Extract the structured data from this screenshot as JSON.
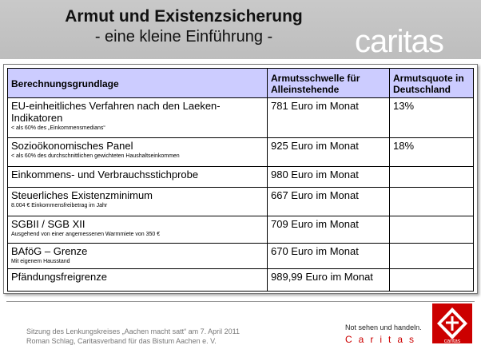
{
  "header": {
    "title": "Armut und Existenzsicherung",
    "subtitle": "- eine kleine Einführung -",
    "watermark": "caritas"
  },
  "table": {
    "headers": [
      "Berechnungsgrundlage",
      "Armutsschwelle für Alleinstehende",
      "Armutsquote in Deutschland"
    ],
    "rows": [
      {
        "basis": "EU-einheitliches Verfahren nach den Laeken-Indikatoren",
        "note": "< als 60% des „Einkommensmedians“",
        "threshold": "781 Euro im Monat",
        "rate": "13%"
      },
      {
        "basis": "Sozioökonomisches Panel",
        "note": "< als 60% des durchschnittlichen gewichteten Haushaltseinkommen",
        "threshold": "925 Euro im Monat",
        "rate": "18%"
      },
      {
        "basis": "Einkommens- und Verbrauchsstichprobe",
        "note": "",
        "threshold": "980 Euro im Monat",
        "rate": ""
      },
      {
        "basis": "Steuerliches Existenzminimum",
        "note": "8.004 € Einkommensfreibetrag im Jahr",
        "threshold": "667 Euro im Monat",
        "rate": ""
      },
      {
        "basis": "SGBII / SGB XII",
        "note": "Ausgehend von einer angemessenen Warmmiete von 350 €",
        "threshold": "709 Euro im Monat",
        "rate": ""
      },
      {
        "basis": "BAföG – Grenze",
        "note": "Mit eigenem Hausstand",
        "threshold": "670 Euro im Monat",
        "rate": ""
      },
      {
        "basis": "Pfändungsfreigrenze",
        "note": "",
        "threshold": "989,99 Euro im Monat",
        "rate": ""
      }
    ]
  },
  "footer": {
    "line1": "Sitzung des Lenkungskreises „Aachen macht satt“ am 7. April 2011",
    "line2": "Roman Schlag, Caritasverband für das Bistum Aachen e. V.",
    "slogan": "Not sehen und handeln.",
    "brand": "Caritas",
    "logo_text": "caritas"
  },
  "colors": {
    "header_bg": "#c0c0c0",
    "table_header_bg": "#ccccff",
    "brand_red": "#cc0000"
  }
}
